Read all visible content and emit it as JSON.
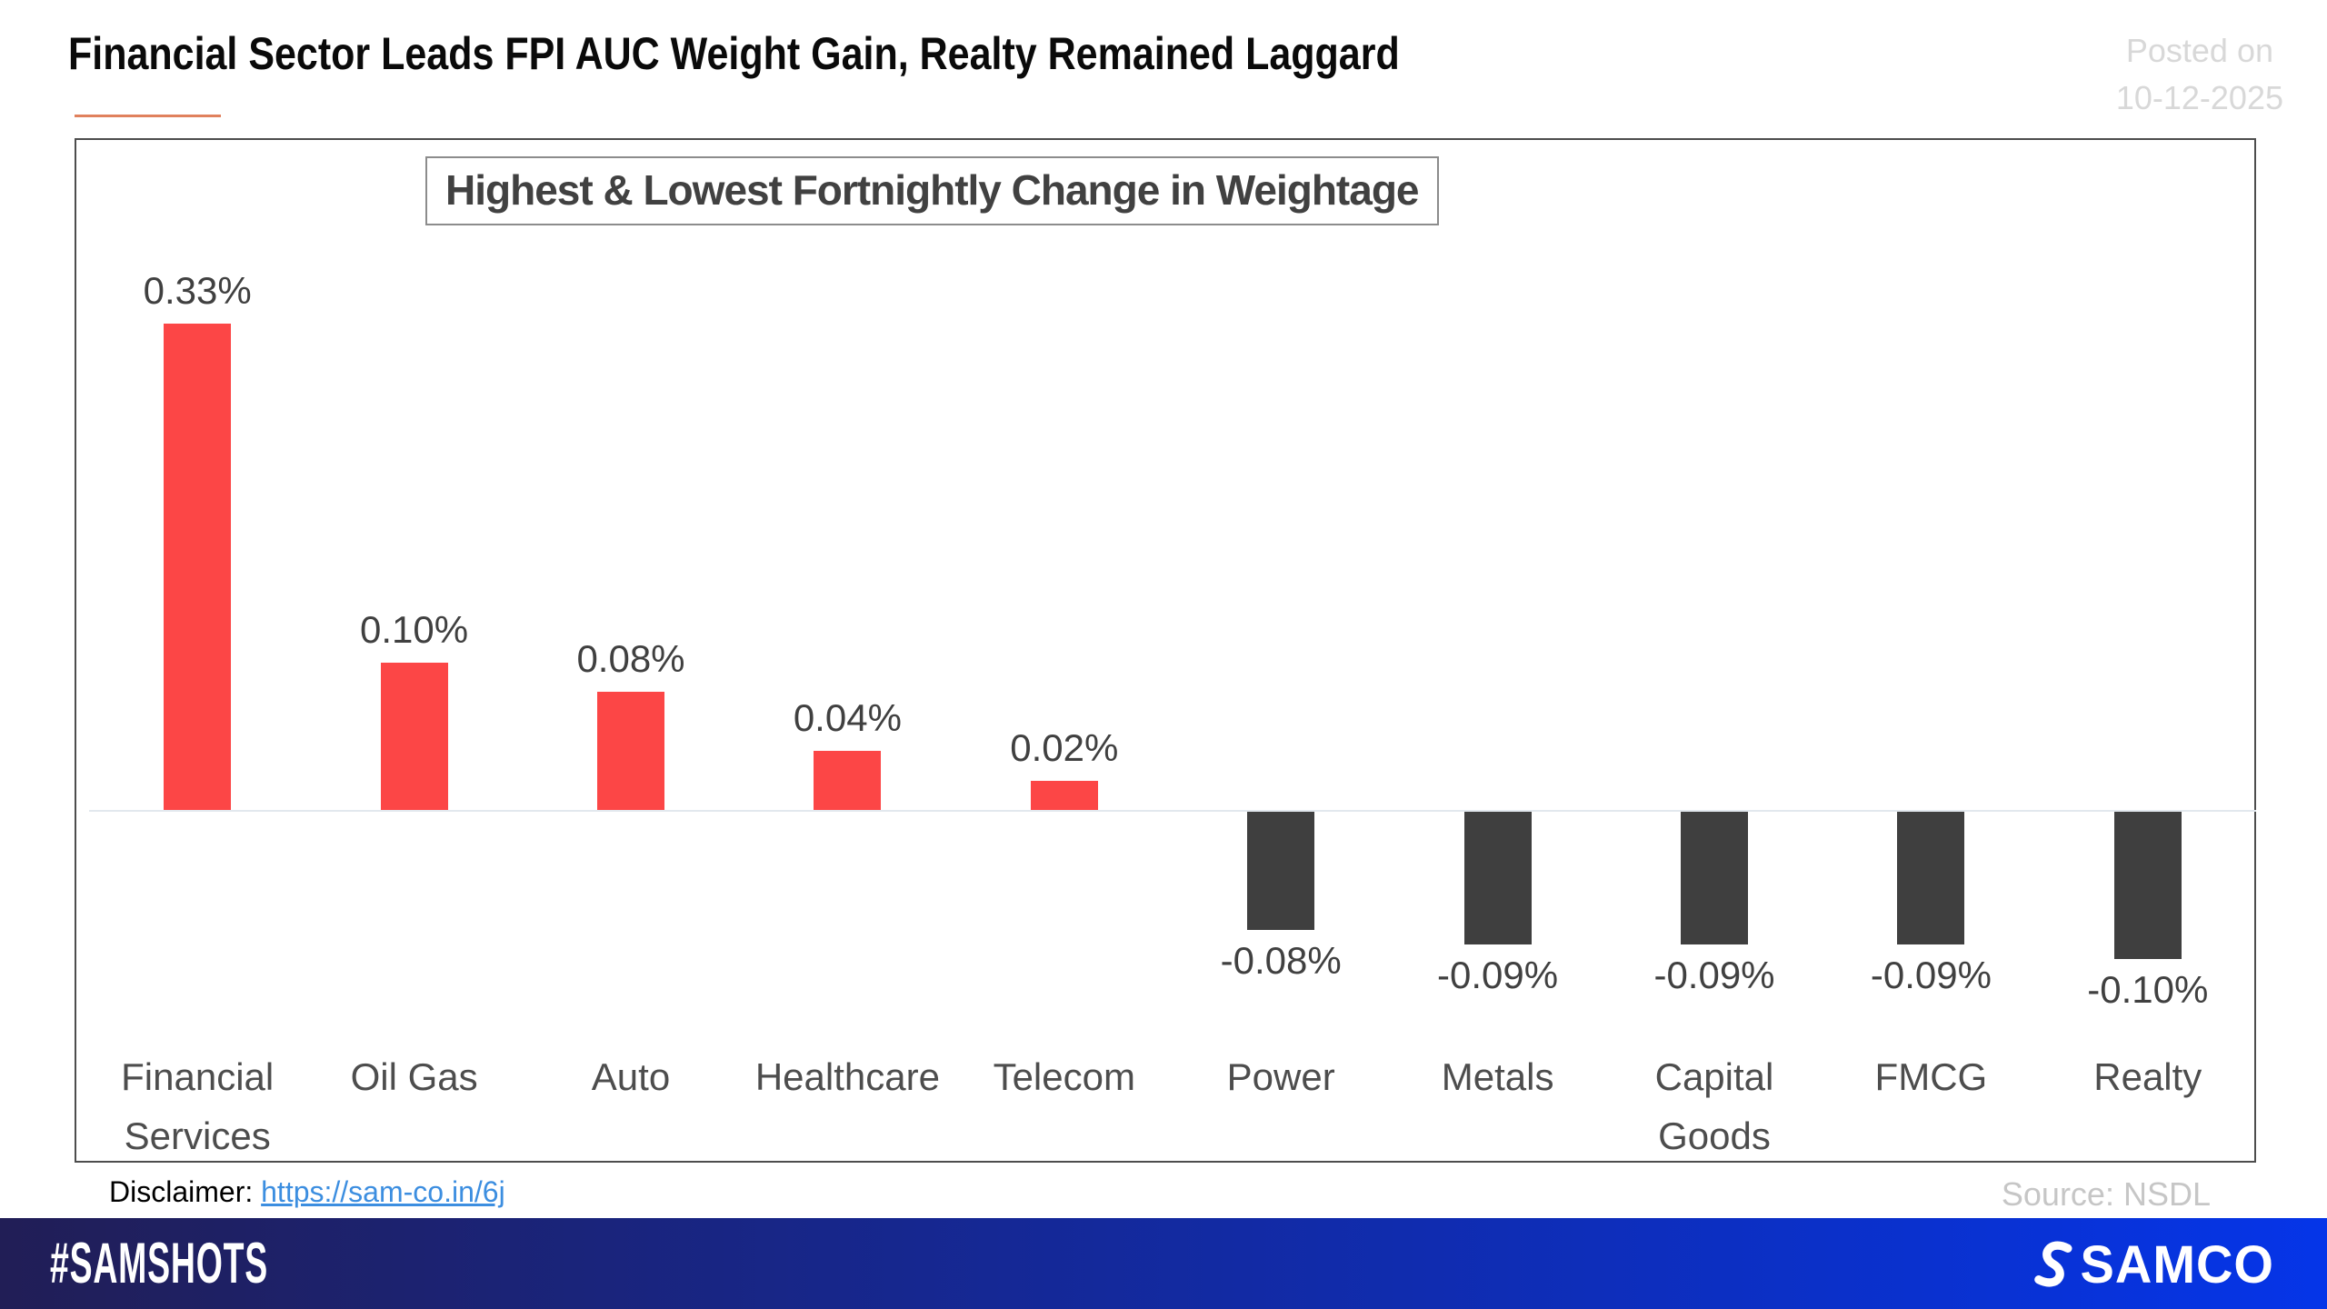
{
  "header": {
    "title": "Financial Sector Leads FPI AUC Weight Gain, Realty Remained Laggard",
    "posted_on_label": "Posted on",
    "posted_on_date": "10-12-2025",
    "accent_underline_color": "#e0815d"
  },
  "chart_data": {
    "type": "bar",
    "title": "Highest & Lowest Fortnightly Change in Weightage",
    "categories": [
      "Financial Services",
      "Oil Gas",
      "Auto",
      "Healthcare",
      "Telecom",
      "Power",
      "Metals",
      "Capital Goods",
      "FMCG",
      "Realty"
    ],
    "values": [
      0.33,
      0.1,
      0.08,
      0.04,
      0.02,
      -0.08,
      -0.09,
      -0.09,
      -0.09,
      -0.1
    ],
    "labels": [
      "0.33%",
      "0.10%",
      "0.08%",
      "0.04%",
      "0.02%",
      "-0.08%",
      "-0.09%",
      "-0.09%",
      "-0.09%",
      "-0.10%"
    ],
    "positive_color": "#fc4646",
    "negative_color": "#3f3f3f",
    "axis_line_color": "#e2e8ee",
    "ylim": [
      -0.18,
      0.45
    ],
    "grid": false,
    "legend": null,
    "value_label_position": "outside-end"
  },
  "footer_note": {
    "disclaimer_label": "Disclaimer:",
    "disclaimer_link": "https://sam-co.in/6j",
    "source": "Source: NSDL"
  },
  "brand_bar": {
    "hashtag": "#SAMSHOTS",
    "brand": "SAMCO",
    "gradient_left": "#211e56",
    "gradient_right": "#0535e8"
  }
}
